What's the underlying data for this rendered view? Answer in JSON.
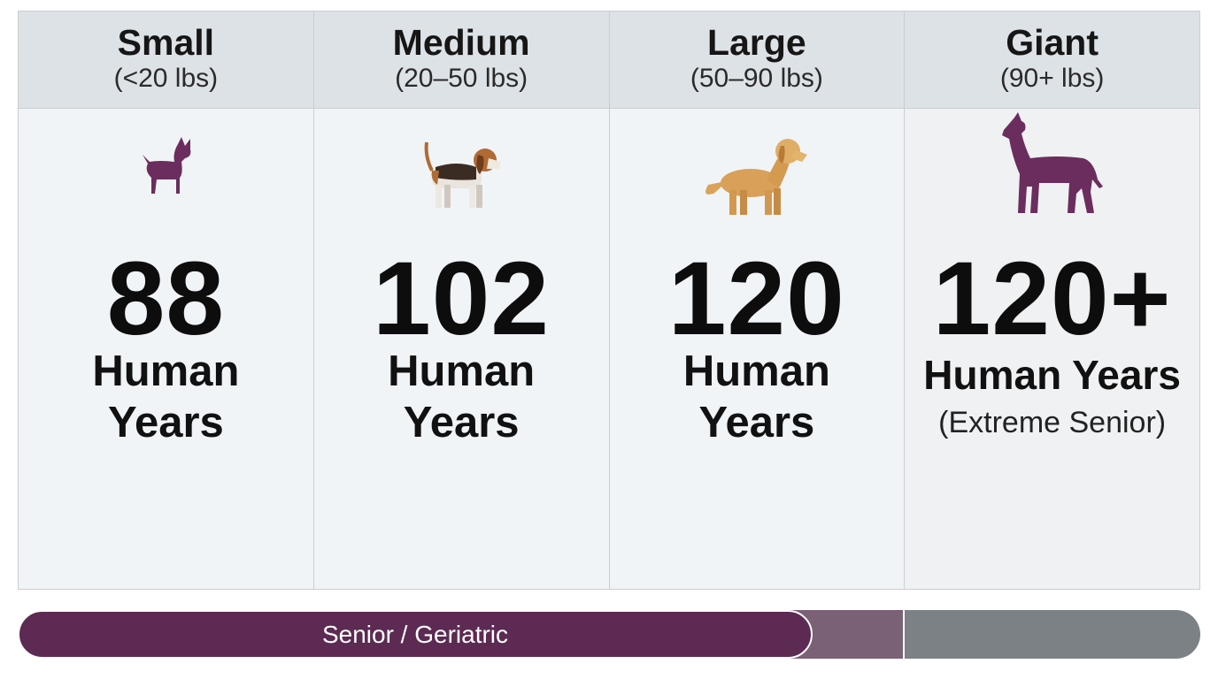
{
  "columns": [
    {
      "title": "Small",
      "subtitle": "(<20 lbs)",
      "age": "88",
      "label": "Human Years"
    },
    {
      "title": "Medium",
      "subtitle": "(20–50 lbs)",
      "age": "102",
      "label": "Human Years"
    },
    {
      "title": "Large",
      "subtitle": "(50–90 lbs)",
      "age": "120",
      "label": "Human Years"
    },
    {
      "title": "Giant",
      "subtitle": "(90+ lbs)",
      "age": "120+",
      "label": "Human Years",
      "note": "(Extreme Senior)"
    }
  ],
  "bar": {
    "label": "Senior / Geriatric"
  }
}
